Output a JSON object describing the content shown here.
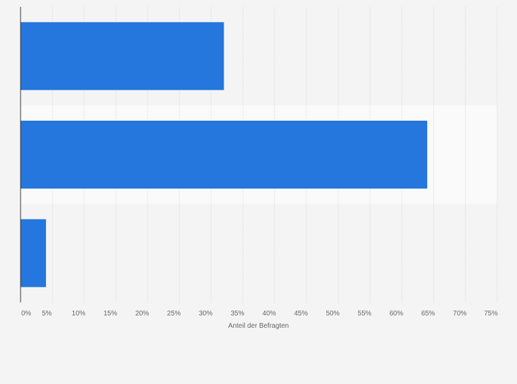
{
  "chart_data": {
    "type": "bar",
    "orientation": "horizontal",
    "categories": [
      "",
      "",
      ""
    ],
    "values": [
      32,
      64,
      4
    ],
    "xlabel": "Anteil der Befragten",
    "ylabel": "",
    "xlim": [
      0,
      75
    ],
    "xticks": [
      "0%",
      "5%",
      "10%",
      "15%",
      "20%",
      "25%",
      "30%",
      "35%",
      "40%",
      "45%",
      "50%",
      "55%",
      "60%",
      "65%",
      "70%",
      "75%"
    ],
    "grid": true,
    "legend": "none",
    "colors": {
      "bar": "#2576dd",
      "background": "#f4f4f4",
      "band": "#fafafa",
      "grid": "#dddddd",
      "axis": "#333333"
    }
  }
}
